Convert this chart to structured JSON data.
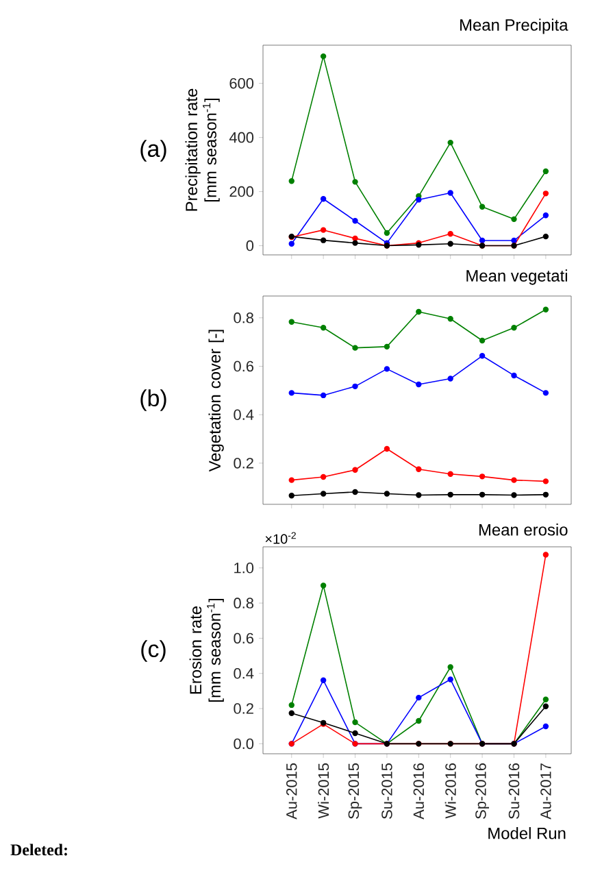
{
  "chart_data": [
    {
      "type": "line",
      "title": "Mean Precipita",
      "ylabel": "Precipitation rate [mm season$^{-1}$]",
      "categories": [
        null,
        null,
        null,
        null,
        null,
        null,
        null,
        null,
        null
      ],
      "series": [
        {
          "color": "#008000",
          "values": [
            239,
            700,
            236,
            47,
            183,
            381,
            144,
            98,
            275
          ]
        },
        {
          "color": "#0000ff",
          "values": [
            7,
            173,
            92,
            10,
            170,
            195,
            19,
            19,
            112
          ]
        },
        {
          "color": "#ff0000",
          "values": [
            32,
            58,
            27,
            0,
            10,
            44,
            0,
            0,
            193
          ]
        },
        {
          "color": "#000000",
          "values": [
            34,
            20,
            10,
            0,
            3,
            7,
            0,
            0,
            34
          ]
        }
      ],
      "ylim": [
        -34,
        741
      ],
      "yticks": [
        0,
        200,
        400,
        600
      ],
      "marker": "circle",
      "tick_labels": "y",
      "annotations": [
        "(a)"
      ]
    },
    {
      "type": "line",
      "title": "Mean vegetati",
      "ylabel": "Vegetation cover [-]",
      "categories": [
        null,
        null,
        null,
        null,
        null,
        null,
        null,
        null,
        null
      ],
      "series": [
        {
          "color": "#008000",
          "values": [
            0.783,
            0.759,
            0.676,
            0.681,
            0.825,
            0.796,
            0.706,
            0.759,
            0.834
          ]
        },
        {
          "color": "#0000ff",
          "values": [
            0.49,
            0.48,
            0.517,
            0.589,
            0.525,
            0.549,
            0.643,
            0.562,
            0.49
          ]
        },
        {
          "color": "#ff0000",
          "values": [
            0.13,
            0.143,
            0.172,
            0.259,
            0.175,
            0.155,
            0.145,
            0.13,
            0.125
          ]
        },
        {
          "color": "#000000",
          "values": [
            0.066,
            0.074,
            0.081,
            0.074,
            0.068,
            0.07,
            0.07,
            0.068,
            0.07
          ]
        }
      ],
      "ylim": [
        0.03,
        0.89
      ],
      "yticks": [
        0.2,
        0.4,
        0.6,
        0.8
      ],
      "marker": "circle",
      "tick_labels": "y",
      "annotations": [
        "(b)"
      ]
    },
    {
      "type": "line",
      "title": "Mean erosio",
      "ylabel": "Erosion rate [mm season$^{-1}$]",
      "xlabel": "Model Run",
      "categories": [
        "Au-2015",
        "Wi-2015",
        "Sp-2015",
        "Su-2015",
        "Au-2016",
        "Wi-2016",
        "Sp-2016",
        "Su-2016",
        "Au-2017"
      ],
      "series": [
        {
          "color": "#008000",
          "values": [
            0.22,
            0.9,
            0.122,
            0,
            0.13,
            0.436,
            0,
            0,
            0.252
          ]
        },
        {
          "color": "#0000ff",
          "values": [
            0,
            0.361,
            0,
            0,
            0.262,
            0.366,
            0,
            0,
            0.099
          ]
        },
        {
          "color": "#ff0000",
          "values": [
            0,
            0.112,
            0,
            0,
            0,
            0,
            0,
            0,
            1.075
          ]
        },
        {
          "color": "#000000",
          "values": [
            0.174,
            0.119,
            0.06,
            0,
            0,
            0,
            0,
            0,
            0.213
          ]
        }
      ],
      "ylim": [
        -0.057,
        1.12
      ],
      "yticks": [
        {
          "value": 0,
          "label": "0.0"
        },
        {
          "value": 0.2,
          "label": "0.2"
        },
        {
          "value": 0.4,
          "label": "0.4"
        },
        {
          "value": 0.6,
          "label": "0.6"
        },
        {
          "value": 0.8,
          "label": "0.8"
        },
        {
          "value": 1.0,
          "label": "1.0"
        }
      ],
      "marker": "circle",
      "annotations": [
        "(c)",
        "×10$^{-2}$",
        "Deleted:"
      ]
    }
  ]
}
